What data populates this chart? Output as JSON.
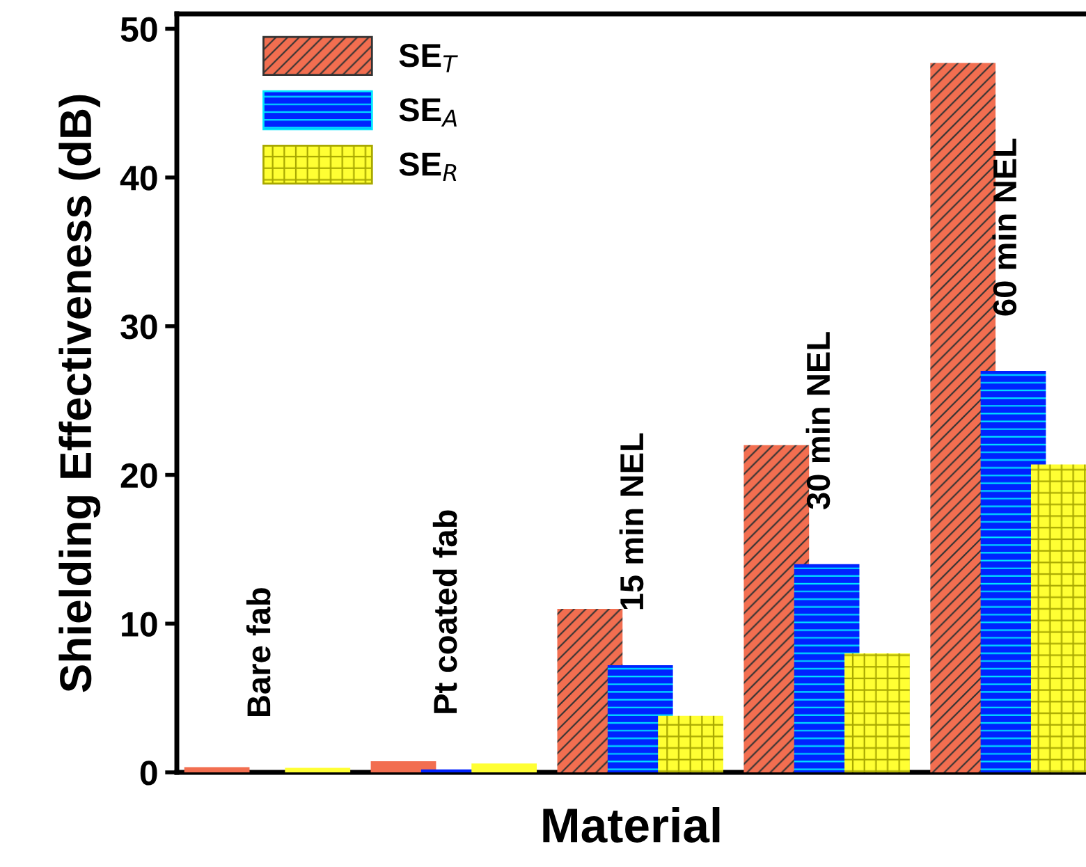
{
  "chart_data": {
    "type": "bar",
    "xlabel": "Material",
    "ylabel": "Shielding Effectiveness (dB)",
    "categories": [
      "Bare fab",
      "Pt coated fab",
      "15 min NEL",
      "30 min NEL",
      "60 min NEL"
    ],
    "series": [
      {
        "name": "SE$_{T}$",
        "color": "#f26e50",
        "values": [
          0.35,
          0.75,
          11,
          22,
          47.7
        ]
      },
      {
        "name": "SE$_{A}$",
        "color": "#0022ff",
        "values": [
          0,
          0.2,
          7.2,
          14,
          27
        ]
      },
      {
        "name": "SE$_{R}$",
        "color": "#ffff33",
        "values": [
          0.3,
          0.6,
          3.8,
          8,
          20.7
        ]
      }
    ],
    "ylim": [
      0,
      51
    ],
    "yticks": [
      0,
      10,
      20,
      30,
      40,
      50
    ],
    "grid": false,
    "legend": "top left"
  }
}
